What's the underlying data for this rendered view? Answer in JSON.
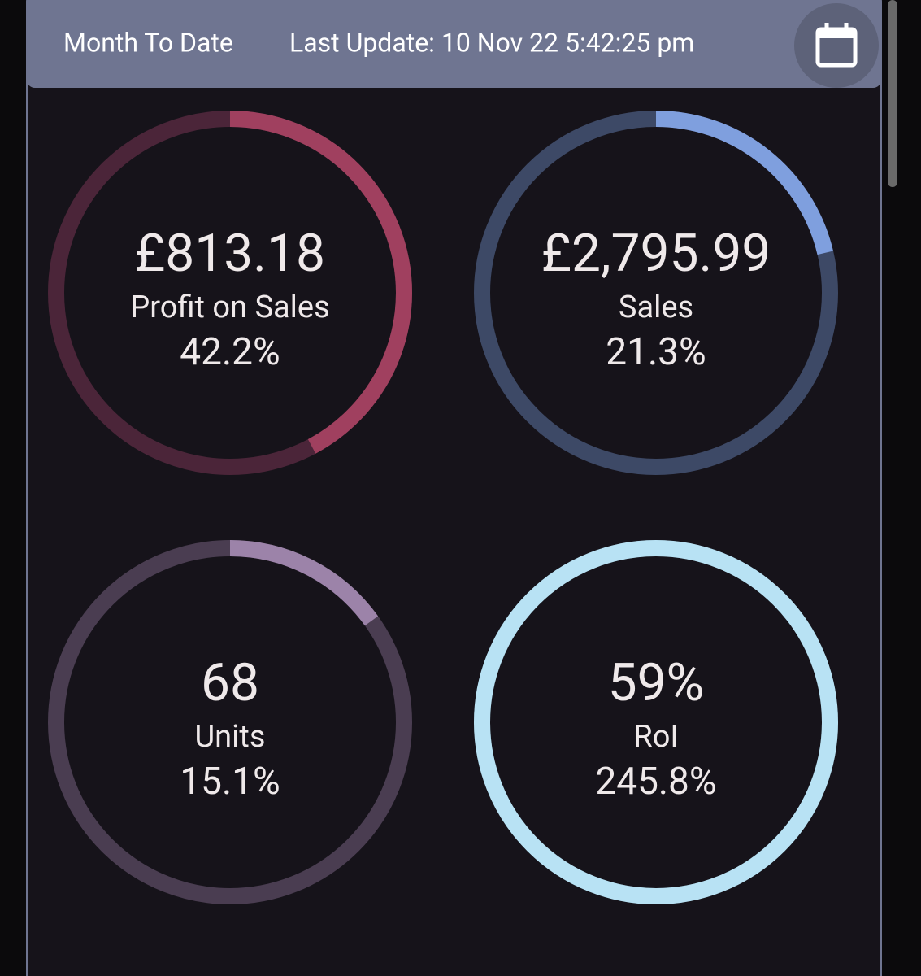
{
  "header": {
    "title": "Month To Date",
    "last_update": "Last Update: 10 Nov 22 5:42:25 pm"
  },
  "gauges": [
    {
      "value": "£813.18",
      "label": "Profit on Sales",
      "percent": 42.2,
      "percent_label": "42.2%",
      "color": "#a0405f",
      "track_color": "#4b2539"
    },
    {
      "value": "£2,795.99",
      "label": "Sales",
      "percent": 21.3,
      "percent_label": "21.3%",
      "color": "#7f9fde",
      "track_color": "#3d4966"
    },
    {
      "value": "68",
      "label": "Units",
      "percent": 15.1,
      "percent_label": "15.1%",
      "color": "#9c83a9",
      "track_color": "#4a3d51"
    },
    {
      "value": "59%",
      "label": "RoI",
      "percent": 245.8,
      "percent_label": "245.8%",
      "color": "#b8e2f4",
      "track_color": "#3e5560"
    }
  ]
}
